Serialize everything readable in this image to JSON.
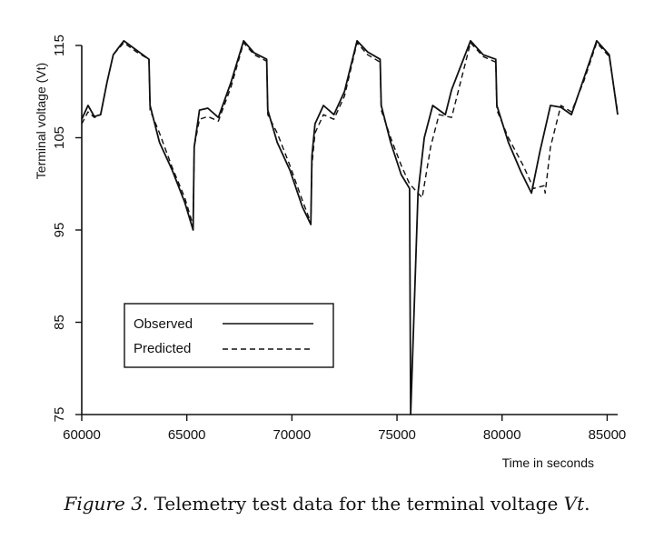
{
  "chart_data": {
    "type": "line",
    "xlabel": "Time in seconds",
    "ylabel": "Terminal voltage (Vt)",
    "xlim": [
      60000,
      85500
    ],
    "ylim": [
      75,
      115
    ],
    "xticks": [
      60000,
      65000,
      70000,
      75000,
      80000,
      85000
    ],
    "yticks": [
      75,
      85,
      95,
      105,
      115
    ],
    "grid": false,
    "legend_position": "lower-left",
    "series": [
      {
        "name": "Observed",
        "style": "solid",
        "x": [
          60000,
          60300,
          60600,
          60900,
          61200,
          61500,
          62000,
          62600,
          63200,
          63250,
          63700,
          64300,
          64900,
          65300,
          65350,
          65600,
          66000,
          66500,
          67100,
          67700,
          68200,
          68800,
          68850,
          69300,
          69900,
          70500,
          70900,
          70950,
          71100,
          71500,
          72000,
          72500,
          73100,
          73600,
          74200,
          74250,
          74700,
          75200,
          75600,
          75650,
          76000,
          76300,
          76700,
          77300,
          77600,
          78500,
          79100,
          79700,
          79750,
          80300,
          80900,
          81400,
          81800,
          82300,
          82800,
          83300,
          83900,
          84500,
          85100,
          85500
        ],
        "y": [
          107,
          108.5,
          107.3,
          107.5,
          111,
          114,
          115.5,
          114.5,
          113.5,
          108.5,
          104.5,
          101.5,
          98,
          95,
          104,
          108,
          108.2,
          107.2,
          111,
          115.5,
          114.2,
          113.5,
          108,
          104.5,
          101.5,
          97.5,
          95.6,
          103,
          106.5,
          108.5,
          107.5,
          110,
          115.5,
          114.3,
          113.5,
          108.5,
          104.5,
          101,
          99.5,
          75,
          99,
          105,
          108.5,
          107.5,
          110.2,
          115.5,
          114,
          113.5,
          108.5,
          104.5,
          101.3,
          99,
          103.5,
          108.5,
          108.3,
          107.5,
          111.5,
          115.5,
          114,
          107.5
        ]
      },
      {
        "name": "Predicted",
        "style": "dashed",
        "x": [
          60000,
          60300,
          60600,
          60900,
          61200,
          61500,
          62000,
          62600,
          63200,
          63250,
          63700,
          64300,
          64900,
          65300,
          65350,
          65600,
          66000,
          66500,
          67100,
          67700,
          68200,
          68800,
          68850,
          69300,
          69900,
          70500,
          70900,
          70950,
          71100,
          71500,
          72000,
          72500,
          73100,
          73600,
          74200,
          74250,
          74700,
          75200,
          75600,
          76200,
          76600,
          77000,
          77600,
          78500,
          79100,
          79700,
          79750,
          80300,
          81000,
          81500,
          82000,
          82050,
          82300,
          82800,
          83300,
          83900,
          84500,
          85100,
          85500
        ],
        "y": [
          106.5,
          107.8,
          107.2,
          107.5,
          111,
          114,
          115.3,
          114.3,
          113.5,
          108,
          105.5,
          101.8,
          98.5,
          95.5,
          104,
          107,
          107.3,
          106.8,
          110.5,
          115.3,
          114,
          113.3,
          107.5,
          105.5,
          102,
          98.2,
          95.8,
          102,
          105.5,
          107.5,
          107,
          109.5,
          115.3,
          114,
          113.2,
          108,
          105,
          102,
          100,
          98.5,
          104,
          107.5,
          107.2,
          115.3,
          113.8,
          113.2,
          108,
          105,
          102,
          99.5,
          99.8,
          99,
          104,
          108.5,
          107.8,
          111.2,
          115.3,
          113.8,
          107.8
        ]
      }
    ]
  },
  "caption": {
    "lead": "Figure 3.",
    "text": " Telemetry test data for the terminal voltage ",
    "var": "Vt",
    "end": "."
  }
}
